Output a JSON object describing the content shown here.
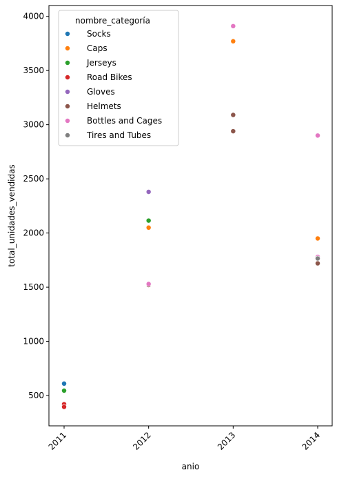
{
  "chart_data": {
    "type": "scatter",
    "title": "",
    "xlabel": "anio",
    "ylabel": "total_unidades_vendidas",
    "x_categories": [
      "2011",
      "2012",
      "2013",
      "2014"
    ],
    "x_tick_rotation_deg": 45,
    "ylim": [
      220,
      4100
    ],
    "y_ticks": [
      500,
      1000,
      1500,
      2000,
      2500,
      3000,
      3500,
      4000
    ],
    "grid": false,
    "legend": {
      "title": "nombre_categoría",
      "placement": "upper-left"
    },
    "series": [
      {
        "name": "Socks",
        "color": "#1f77b4",
        "points": [
          {
            "x": "2011",
            "y": 610
          }
        ]
      },
      {
        "name": "Caps",
        "color": "#ff7f0e",
        "points": [
          {
            "x": "2012",
            "y": 2050
          },
          {
            "x": "2013",
            "y": 3770
          },
          {
            "x": "2014",
            "y": 1950
          }
        ]
      },
      {
        "name": "Jerseys",
        "color": "#2ca02c",
        "points": [
          {
            "x": "2011",
            "y": 545
          },
          {
            "x": "2012",
            "y": 2115
          }
        ]
      },
      {
        "name": "Road Bikes",
        "color": "#d62728",
        "points": [
          {
            "x": "2011",
            "y": 420
          },
          {
            "x": "2011",
            "y": 395
          }
        ]
      },
      {
        "name": "Gloves",
        "color": "#9467bd",
        "points": [
          {
            "x": "2012",
            "y": 2380
          }
        ]
      },
      {
        "name": "Helmets",
        "color": "#8c564b",
        "points": [
          {
            "x": "2012",
            "y": 1520
          },
          {
            "x": "2013",
            "y": 3090
          },
          {
            "x": "2013",
            "y": 2940
          },
          {
            "x": "2014",
            "y": 1720
          }
        ]
      },
      {
        "name": "Bottles and Cages",
        "color": "#e377c2",
        "points": [
          {
            "x": "2012",
            "y": 1530
          },
          {
            "x": "2013",
            "y": 3910
          },
          {
            "x": "2014",
            "y": 2900
          },
          {
            "x": "2014",
            "y": 1780
          }
        ]
      },
      {
        "name": "Tires and Tubes",
        "color": "#7f7f7f",
        "points": [
          {
            "x": "2014",
            "y": 1765
          }
        ]
      }
    ]
  }
}
